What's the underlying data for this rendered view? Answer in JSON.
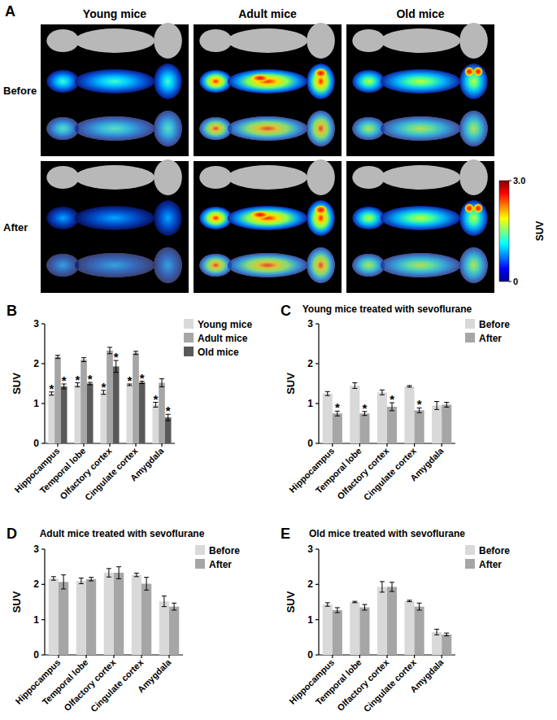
{
  "panel_a": {
    "panel_label": "A",
    "columns": [
      "Young mice",
      "Adult mice",
      "Old mice"
    ],
    "rows": [
      "Before",
      "After"
    ],
    "colorbar": {
      "label": "SUV",
      "range": [
        0,
        3
      ],
      "ticks": [
        0,
        {
          "value": 3,
          "label": "3.0"
        }
      ]
    }
  },
  "chart_data": [
    {
      "type": "bar",
      "panel_label": "B",
      "y_label": "SUV",
      "categories": [
        "Hippocampus",
        "Temporal lobe",
        "Olfactory cortex",
        "Cingulate cortex",
        "Amygdala"
      ],
      "series": [
        {
          "name": "Young mice",
          "color": "#d9d9d9",
          "values": [
            1.25,
            1.47,
            1.28,
            1.47,
            0.97
          ],
          "errors": [
            0.04,
            0.05,
            0.05,
            0.02,
            0.06
          ],
          "significance": [
            "*",
            "*",
            "*",
            "*",
            "*"
          ]
        },
        {
          "name": "Adult mice",
          "color": "#a6a6a6",
          "values": [
            2.17,
            2.1,
            2.33,
            2.27,
            1.52
          ],
          "errors": [
            0.04,
            0.05,
            0.08,
            0.04,
            0.1
          ],
          "significance": [
            null,
            null,
            null,
            null,
            null
          ]
        },
        {
          "name": "Old mice",
          "color": "#595959",
          "values": [
            1.43,
            1.5,
            1.93,
            1.53,
            0.65
          ],
          "errors": [
            0.06,
            0.03,
            0.15,
            0.03,
            0.08
          ],
          "significance": [
            "*",
            "*",
            "*",
            "*",
            "*"
          ]
        }
      ],
      "ylim": [
        0,
        3
      ],
      "yticks": [
        0,
        1,
        2,
        3
      ],
      "grid": false,
      "legend": "right"
    },
    {
      "type": "bar",
      "panel_label": "C",
      "title": "Young mice treated with sevoflurane",
      "y_label": "SUV",
      "categories": [
        "Hippocampus",
        "Temporal lobe",
        "Olfactory cortex",
        "Cingulate cortex",
        "Amygdala"
      ],
      "series": [
        {
          "name": "Before",
          "color": "#d9d9d9",
          "values": [
            1.25,
            1.45,
            1.28,
            1.43,
            0.95
          ],
          "errors": [
            0.05,
            0.07,
            0.06,
            0.02,
            0.1
          ],
          "significance": [
            null,
            null,
            null,
            null,
            null
          ]
        },
        {
          "name": "After",
          "color": "#a6a6a6",
          "values": [
            0.75,
            0.75,
            0.92,
            0.83,
            0.97
          ],
          "errors": [
            0.06,
            0.05,
            0.1,
            0.06,
            0.06
          ],
          "significance": [
            "*",
            "*",
            "*",
            "*",
            null
          ]
        }
      ],
      "ylim": [
        0,
        3
      ],
      "yticks": [
        0,
        1,
        2,
        3
      ],
      "grid": false,
      "legend": "right"
    },
    {
      "type": "bar",
      "panel_label": "D",
      "title": "Adult mice treated with sevoflurane",
      "y_label": "SUV",
      "categories": [
        "Hippocampus",
        "Temporal lobe",
        "Olfactory cortex",
        "Cingulate cortex",
        "Amygdala"
      ],
      "series": [
        {
          "name": "Before",
          "color": "#d9d9d9",
          "values": [
            2.17,
            2.1,
            2.33,
            2.27,
            1.52
          ],
          "errors": [
            0.05,
            0.08,
            0.12,
            0.05,
            0.15
          ],
          "significance": [
            null,
            null,
            null,
            null,
            null
          ]
        },
        {
          "name": "After",
          "color": "#a6a6a6",
          "values": [
            2.07,
            2.15,
            2.33,
            2.02,
            1.37
          ],
          "errors": [
            0.2,
            0.05,
            0.17,
            0.18,
            0.1
          ],
          "significance": [
            null,
            null,
            null,
            null,
            null
          ]
        }
      ],
      "ylim": [
        0,
        3
      ],
      "yticks": [
        0,
        1,
        2,
        3
      ],
      "grid": false,
      "legend": "right"
    },
    {
      "type": "bar",
      "panel_label": "E",
      "title": "Old mice treated with sevoflurane",
      "y_label": "SUV",
      "categories": [
        "Hippocampus",
        "Temporal lobe",
        "Olfactory cortex",
        "Cingulate cortex",
        "Amygdala"
      ],
      "series": [
        {
          "name": "Before",
          "color": "#d9d9d9",
          "values": [
            1.43,
            1.5,
            1.93,
            1.53,
            0.65
          ],
          "errors": [
            0.05,
            0.02,
            0.15,
            0.02,
            0.08
          ],
          "significance": [
            null,
            null,
            null,
            null,
            null
          ]
        },
        {
          "name": "After",
          "color": "#a6a6a6",
          "values": [
            1.27,
            1.35,
            1.93,
            1.37,
            0.58
          ],
          "errors": [
            0.07,
            0.08,
            0.13,
            0.1,
            0.04
          ],
          "significance": [
            null,
            null,
            null,
            null,
            null
          ]
        }
      ],
      "ylim": [
        0,
        3
      ],
      "yticks": [
        0,
        1,
        2,
        3
      ],
      "grid": false,
      "legend": "right"
    }
  ]
}
